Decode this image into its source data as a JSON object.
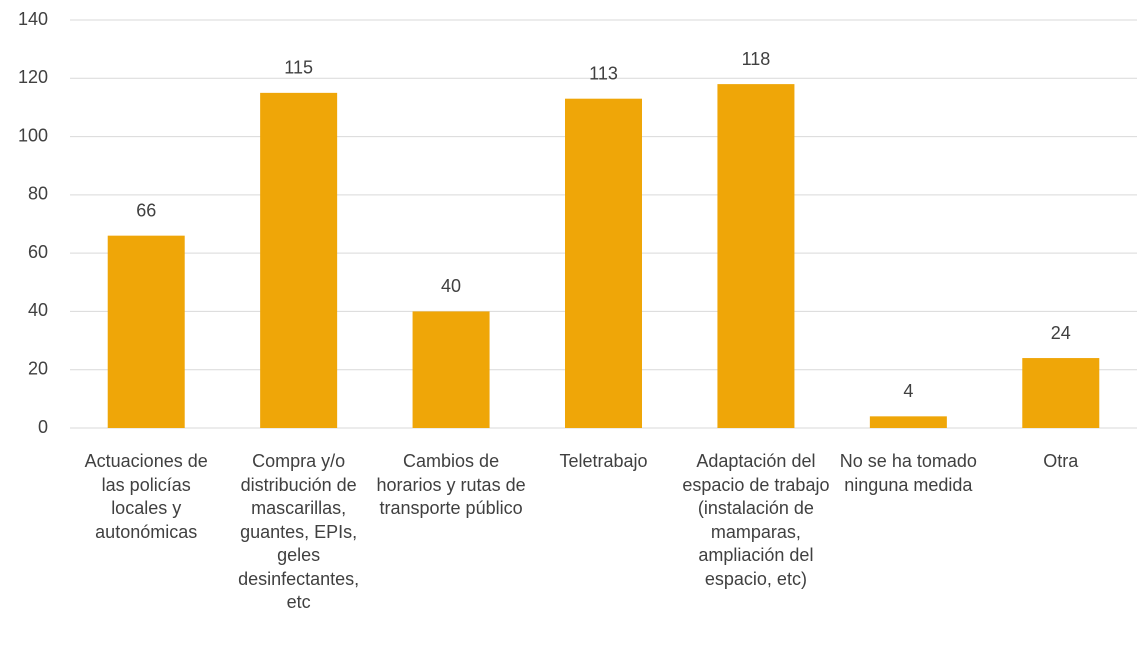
{
  "chart_data": {
    "type": "bar",
    "categories": [
      "Actuaciones de las policías locales y autonómicas",
      "Compra y/o distribución de mascarillas, guantes, EPIs, geles desinfectantes, etc",
      "Cambios de horarios y rutas de transporte público",
      "Teletrabajo",
      "Adaptación del espacio de trabajo (instalación de mamparas, ampliación del espacio, etc)",
      "No se ha tomado ninguna medida",
      "Otra"
    ],
    "values": [
      66,
      115,
      40,
      113,
      118,
      4,
      24
    ],
    "color": "#efa608",
    "ylim": [
      0,
      140
    ],
    "yticks": [
      0,
      20,
      40,
      60,
      80,
      100,
      120,
      140
    ],
    "grid": true
  }
}
